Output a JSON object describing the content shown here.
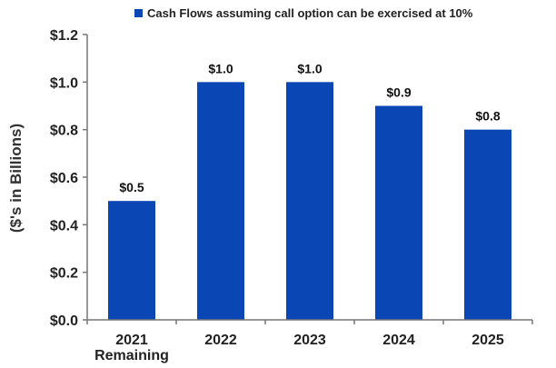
{
  "colors": {
    "bar": "#0b47b4",
    "axis": "#777777",
    "text": "#222222"
  },
  "chart_data": {
    "type": "bar",
    "categories": [
      "2021\nRemaining",
      "2022",
      "2023",
      "2024",
      "2025"
    ],
    "series": [
      {
        "name": "Cash Flows assuming call option can be exercised at 10%",
        "values": [
          0.5,
          1.0,
          1.0,
          0.9,
          0.8
        ],
        "labels": [
          "$0.5",
          "$1.0",
          "$1.0",
          "$0.9",
          "$0.8"
        ]
      }
    ],
    "ylabel": "($'s in Billions)",
    "ylim": [
      0,
      1.2
    ],
    "yticks": [
      0,
      0.2,
      0.4,
      0.6,
      0.8,
      1.0,
      1.2
    ],
    "ytick_labels": [
      "$0.0",
      "$0.2",
      "$0.4",
      "$0.6",
      "$0.8",
      "$1.0",
      "$1.2"
    ],
    "grid": false,
    "legend_position": "top"
  }
}
